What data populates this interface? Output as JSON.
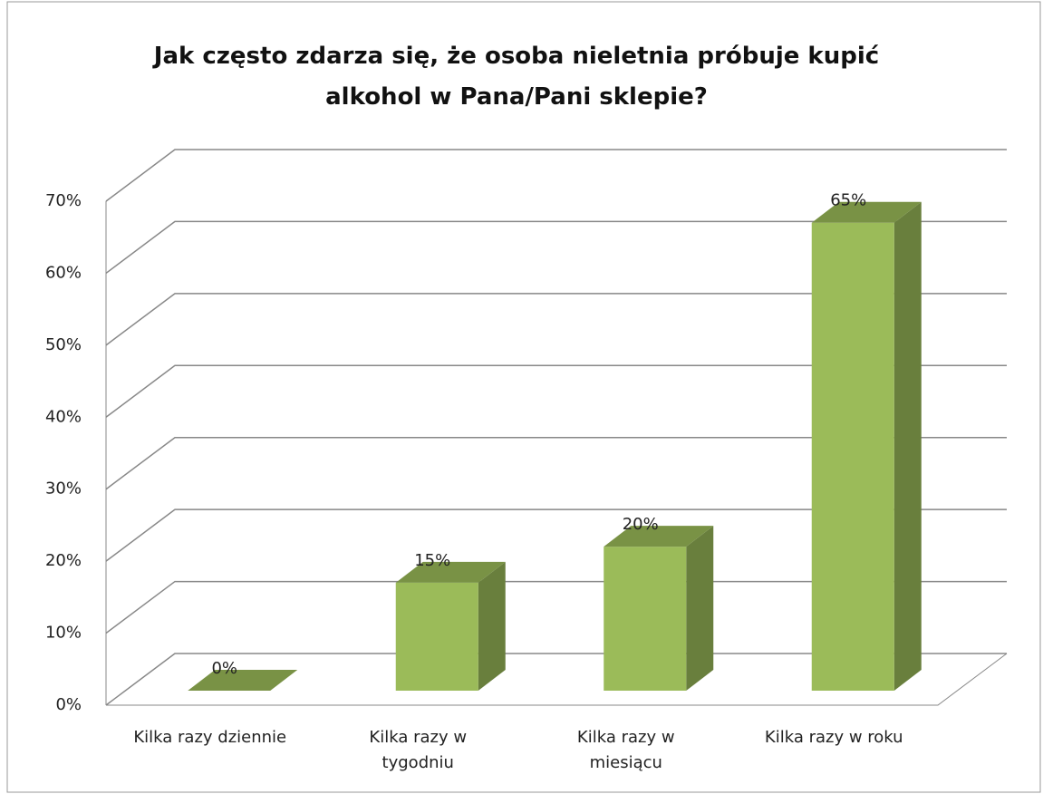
{
  "chart_data": {
    "type": "bar3d",
    "title": "Jak często zdarza się, że osoba nieletnia próbuje kupić alkohol w Pana/Pani sklepie?",
    "categories": [
      "Kilka razy dziennie",
      "Kilka razy w tygodniu",
      "Kilka razy w miesiącu",
      "Kilka razy w roku"
    ],
    "values": [
      0,
      15,
      20,
      65
    ],
    "value_labels": [
      "0%",
      "15%",
      "20%",
      "65%"
    ],
    "color": "#9bbb59",
    "ylim": [
      0,
      70
    ],
    "yticks": [
      {
        "value": 0,
        "label": "0%"
      },
      {
        "value": 10,
        "label": "10%"
      },
      {
        "value": 20,
        "label": "20%"
      },
      {
        "value": 30,
        "label": "30%"
      },
      {
        "value": 40,
        "label": "40%"
      },
      {
        "value": 50,
        "label": "50%"
      },
      {
        "value": 60,
        "label": "60%"
      },
      {
        "value": 70,
        "label": "70%"
      }
    ],
    "grid": true
  }
}
